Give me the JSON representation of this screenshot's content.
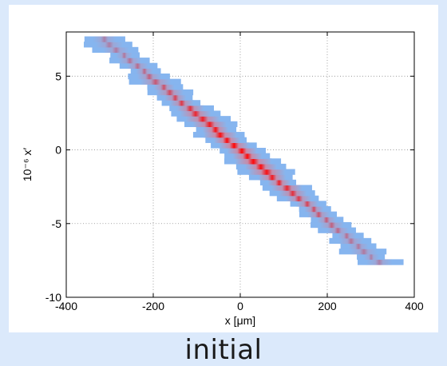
{
  "caption": "initial",
  "chart_data": {
    "type": "heatmap",
    "title": "",
    "xlabel": "x [μm]",
    "ylabel": "10⁻⁶ x′",
    "xlim": [
      -400,
      400
    ],
    "ylim": [
      -10,
      8
    ],
    "xticks": [
      -400,
      -200,
      0,
      200,
      400
    ],
    "yticks": [
      -10,
      -5,
      0,
      5
    ],
    "grid": true,
    "grid_style": "dotted",
    "colors": {
      "low": "#7fb2ee",
      "high": "#ff0000"
    },
    "distribution": {
      "shape": "correlated gaussian ellipse",
      "center": [
        0,
        0
      ],
      "slope_dxprime_dx": -0.024,
      "extent_x": [
        -330,
        320
      ],
      "extent_xprime": [
        -7.6,
        7.8
      ],
      "core_half_width_xprime": 1.6
    }
  }
}
